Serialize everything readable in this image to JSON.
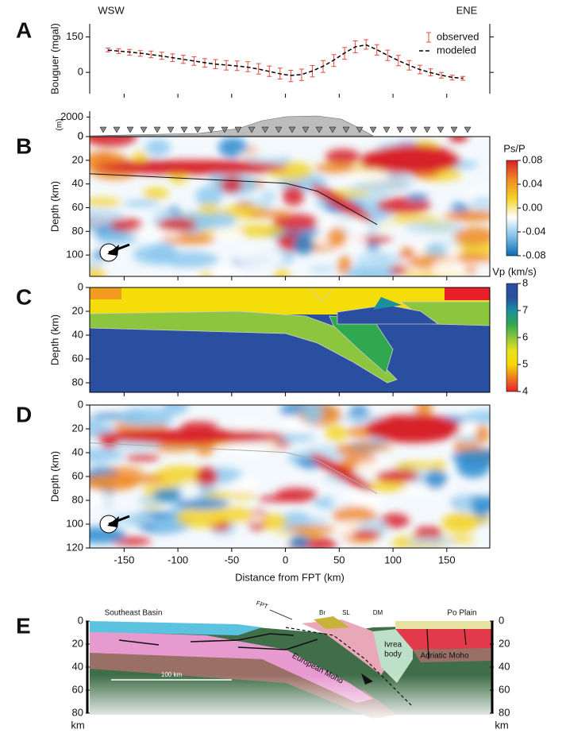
{
  "chart_data": [
    {
      "type": "line",
      "panel": "A",
      "annotations": [
        "WSW",
        "ENE"
      ],
      "ylabel": "Bouguer (mgal)",
      "x": [
        -165,
        -155,
        -145,
        -135,
        -125,
        -115,
        -105,
        -95,
        -85,
        -75,
        -65,
        -55,
        -45,
        -35,
        -25,
        -15,
        -5,
        5,
        15,
        25,
        35,
        45,
        55,
        65,
        75,
        85,
        95,
        105,
        115,
        125,
        135,
        145,
        155,
        165
      ],
      "series": [
        {
          "name": "observed",
          "color": "#e8473b",
          "values": [
            95,
            90,
            85,
            80,
            76,
            70,
            62,
            55,
            48,
            40,
            35,
            30,
            28,
            24,
            15,
            5,
            -5,
            -15,
            -10,
            5,
            25,
            50,
            80,
            108,
            118,
            95,
            72,
            50,
            30,
            12,
            0,
            -12,
            -22,
            -25
          ],
          "errors": [
            8,
            10,
            12,
            12,
            14,
            15,
            16,
            17,
            18,
            18,
            19,
            20,
            20,
            21,
            22,
            22,
            23,
            24,
            24,
            24,
            25,
            25,
            25,
            25,
            20,
            22,
            22,
            22,
            20,
            18,
            15,
            12,
            10,
            8
          ]
        },
        {
          "name": "modeled",
          "color": "#000000",
          "dash": true,
          "values": [
            94,
            90,
            86,
            81,
            75,
            69,
            62,
            55,
            48,
            41,
            35,
            31,
            27,
            22,
            14,
            4,
            -6,
            -13,
            -9,
            6,
            26,
            52,
            82,
            108,
            116,
            96,
            72,
            50,
            30,
            12,
            -1,
            -12,
            -21,
            -25
          ]
        }
      ],
      "xlim": [
        -182,
        190
      ],
      "ylim": [
        -90,
        205
      ],
      "yticks": [
        0,
        150
      ],
      "legend": "upper right"
    },
    {
      "type": "heatmap",
      "panel": "B",
      "ylabel": "Depth (km)",
      "xlim": [
        -182,
        190
      ],
      "ylim": [
        0,
        118
      ],
      "yticks": [
        0,
        20,
        40,
        60,
        80,
        100
      ],
      "seed": 7,
      "topography": {
        "ylabel": "(m)",
        "ylim": [
          0,
          2600
        ],
        "yticks": [
          0,
          2000
        ]
      },
      "colorbar": {
        "title": "Ps/P",
        "lim": [
          -0.08,
          0.08
        ],
        "ticks": [
          0.08,
          0.04,
          {
            "value": 0,
            "label": "0.00"
          },
          -0.04,
          -0.08
        ],
        "colors": [
          "#0a6cb5",
          "#7fbfe8",
          "#ffffff",
          "#f5d327",
          "#f08a24",
          "#d8202a"
        ]
      }
    },
    {
      "type": "velocity-model",
      "panel": "C",
      "ylabel": "Depth (km)",
      "xlim": [
        -182,
        190
      ],
      "ylim": [
        0,
        88
      ],
      "yticks": [
        0,
        20,
        40,
        60,
        80
      ],
      "colorbar": {
        "title": "Vp (km/s)",
        "lim": [
          4,
          8
        ],
        "ticks": [
          8,
          7,
          6,
          5,
          4
        ],
        "colors": [
          "#e8202a",
          "#f07a20",
          "#f5d80a",
          "#e9e21a",
          "#8cc63f",
          "#2fa84f",
          "#1a8fa0",
          "#2a4ea0",
          "#2a4ea0"
        ]
      }
    },
    {
      "type": "heatmap",
      "panel": "D",
      "ylabel": "Depth (km)",
      "xlim": [
        -182,
        190
      ],
      "ylim": [
        0,
        120
      ],
      "yticks": [
        0,
        20,
        40,
        60,
        80,
        100,
        120
      ],
      "seed": 31,
      "xticks": [
        -150,
        -100,
        -50,
        0,
        50,
        100,
        150
      ],
      "xlabel": "Distance from FPT (km)"
    }
  ],
  "diagram": {
    "panel": "E",
    "labels": [
      "Southeast Basin",
      "FPT",
      "Br",
      "SL",
      "DM",
      "Po Plain",
      "Ivrea",
      "body",
      "Adriatic Moho",
      "European Moho"
    ],
    "scale_bar": "100 km",
    "yticks": [
      0,
      20,
      40,
      60,
      80
    ],
    "unit": "km"
  }
}
